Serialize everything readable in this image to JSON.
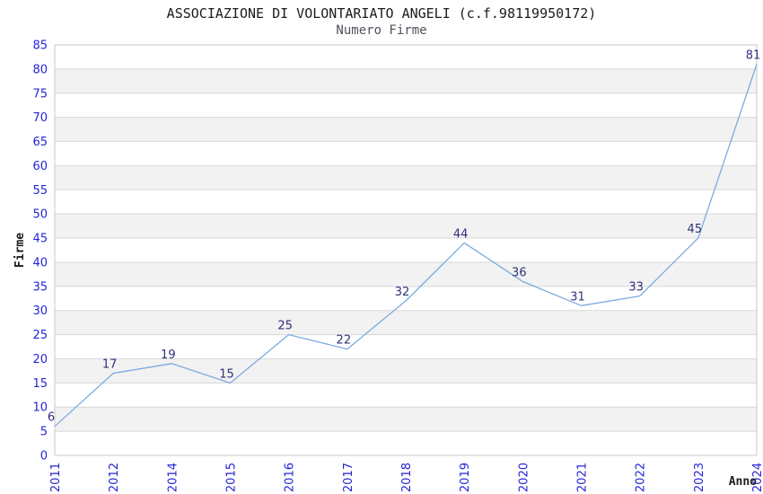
{
  "header": {
    "title": "ASSOCIAZIONE DI VOLONTARIATO ANGELI (c.f.98119950172)",
    "subtitle": "Numero Firme"
  },
  "chart_data": {
    "type": "line",
    "title": "ASSOCIAZIONE DI VOLONTARIATO ANGELI (c.f.98119950172)",
    "subtitle": "Numero Firme",
    "xlabel": "Anno",
    "ylabel": "Firme",
    "categories": [
      "2011",
      "2012",
      "2014",
      "2015",
      "2016",
      "2017",
      "2018",
      "2019",
      "2020",
      "2021",
      "2022",
      "2023",
      "2024"
    ],
    "values": [
      6,
      17,
      19,
      15,
      25,
      22,
      32,
      44,
      36,
      31,
      33,
      45,
      81
    ],
    "ylim": [
      0,
      85
    ],
    "yticks": [
      0,
      5,
      10,
      15,
      20,
      25,
      30,
      35,
      40,
      45,
      50,
      55,
      60,
      65,
      70,
      75,
      80,
      85
    ],
    "grid": true,
    "legend_position": "none",
    "banding": "alternating horizontal bands every 5 units",
    "colors": {
      "line": "#7bacdf",
      "tick_label": "#2424d6",
      "data_label": "#30307c",
      "band": "#f2f2f2",
      "gridline": "#d8d8d8",
      "border": "#c9c9c9",
      "axis_title": "#1c1c1c",
      "background": "#ffffff"
    }
  }
}
